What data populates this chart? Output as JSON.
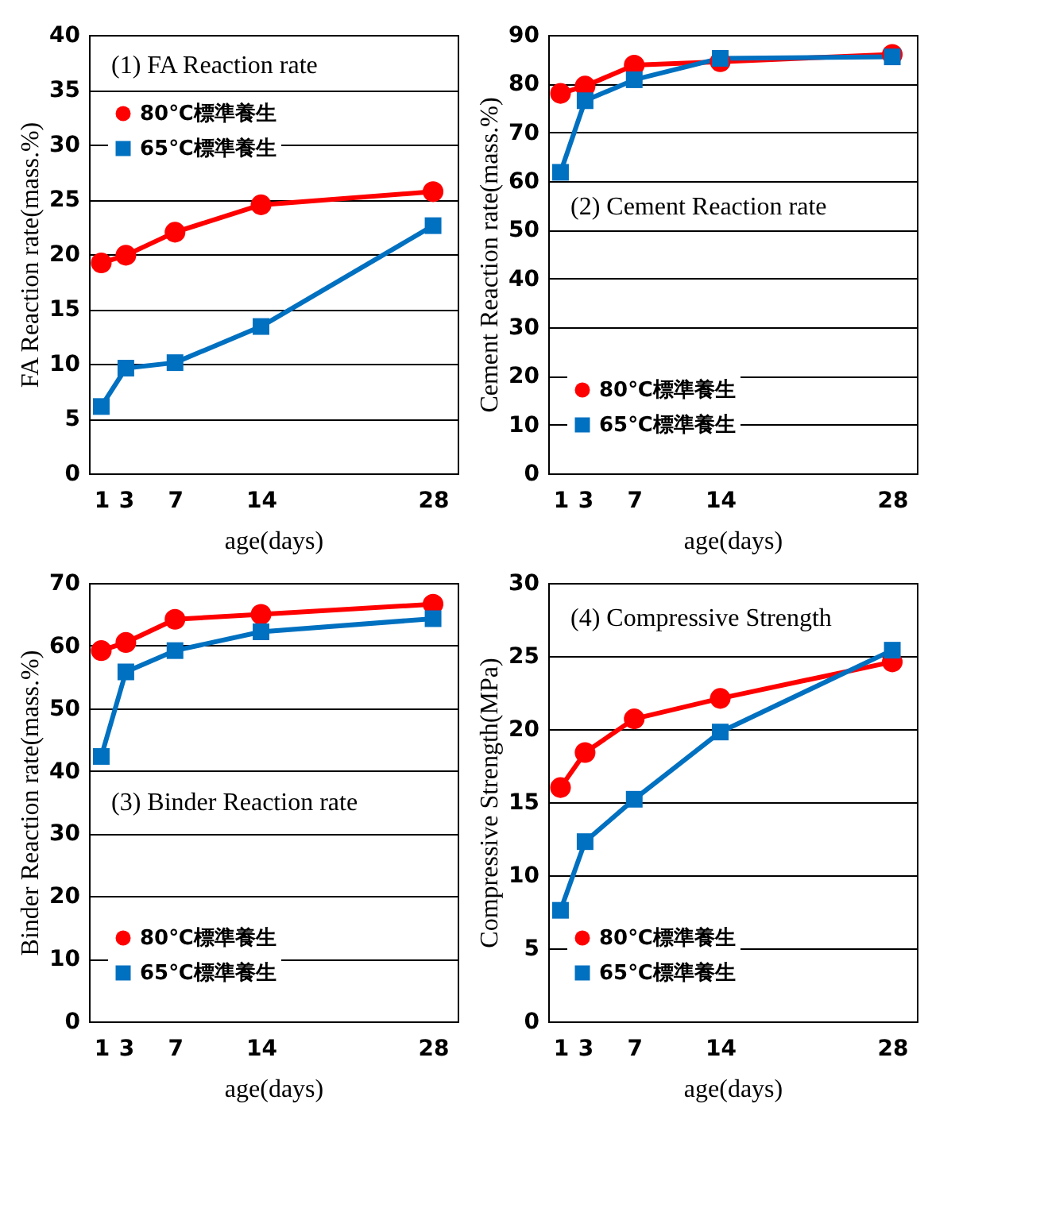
{
  "chart_data": [
    {
      "type": "line",
      "annotations": [
        "(1)   FA Reaction rate"
      ],
      "xlabel": "age(days)",
      "ylabel": "FA Reaction  rate(mass.%)",
      "x": [
        1,
        3,
        7,
        14,
        28
      ],
      "xlim": [
        0,
        30
      ],
      "xticks": [
        1,
        3,
        7,
        14,
        28
      ],
      "ylim": [
        0,
        40
      ],
      "yticks": [
        0,
        5,
        10,
        15,
        20,
        25,
        30,
        35,
        40
      ],
      "grid": "y",
      "legend": "top left",
      "series": [
        {
          "name": "80℃標準養生",
          "color": "#ff0000",
          "marker": "circle",
          "values": [
            19.2,
            19.9,
            22.0,
            24.5,
            25.7
          ]
        },
        {
          "name": "65℃標準養生",
          "color": "#0070c0",
          "marker": "square",
          "values": [
            6.1,
            9.6,
            10.1,
            13.4,
            22.6
          ]
        }
      ]
    },
    {
      "type": "line",
      "annotations": [
        "(2)   Cement Reaction rate"
      ],
      "xlabel": "age(days)",
      "ylabel": "Cement  Reaction  rate(mass.%)",
      "x": [
        1,
        3,
        7,
        14,
        28
      ],
      "xlim": [
        0,
        30
      ],
      "xticks": [
        1,
        3,
        7,
        14,
        28
      ],
      "ylim": [
        0,
        90
      ],
      "yticks": [
        0,
        10,
        20,
        30,
        40,
        50,
        60,
        70,
        80,
        90
      ],
      "grid": "y",
      "legend": "bottom left",
      "series": [
        {
          "name": "80℃標準養生",
          "color": "#ff0000",
          "marker": "circle",
          "values": [
            78.0,
            79.5,
            83.8,
            84.5,
            86.0
          ]
        },
        {
          "name": "65℃標準養生",
          "color": "#0070c0",
          "marker": "square",
          "values": [
            61.8,
            76.5,
            80.8,
            85.2,
            85.5
          ]
        }
      ]
    },
    {
      "type": "line",
      "annotations": [
        "(3) Binder Reaction rate"
      ],
      "xlabel": "age(days)",
      "ylabel": "Binder  Reaction  rate(mass.%)",
      "x": [
        1,
        3,
        7,
        14,
        28
      ],
      "xlim": [
        0,
        30
      ],
      "xticks": [
        1,
        3,
        7,
        14,
        28
      ],
      "ylim": [
        0,
        70
      ],
      "yticks": [
        0,
        10,
        20,
        30,
        40,
        50,
        60,
        70
      ],
      "grid": "y",
      "legend": "bottom left",
      "series": [
        {
          "name": "80℃標準養生",
          "color": "#ff0000",
          "marker": "circle",
          "values": [
            59.2,
            60.5,
            64.2,
            65.0,
            66.6
          ]
        },
        {
          "name": "65℃標準養生",
          "color": "#0070c0",
          "marker": "square",
          "values": [
            42.3,
            55.8,
            59.2,
            62.2,
            64.3
          ]
        }
      ]
    },
    {
      "type": "line",
      "annotations": [
        "(4) Compressive Strength"
      ],
      "xlabel": "age(days)",
      "ylabel": "Compressive   Strength(MPa)",
      "x": [
        1,
        3,
        7,
        14,
        28
      ],
      "xlim": [
        0,
        30
      ],
      "xticks": [
        1,
        3,
        7,
        14,
        28
      ],
      "ylim": [
        0,
        30
      ],
      "yticks": [
        0,
        5,
        10,
        15,
        20,
        25,
        30
      ],
      "grid": "y",
      "legend": "bottom left",
      "series": [
        {
          "name": "80℃標準養生",
          "color": "#ff0000",
          "marker": "circle",
          "values": [
            16.0,
            18.4,
            20.7,
            22.1,
            24.6
          ]
        },
        {
          "name": "65℃標準養生",
          "color": "#0070c0",
          "marker": "square",
          "values": [
            7.6,
            12.3,
            15.2,
            19.8,
            25.4
          ]
        }
      ]
    }
  ]
}
